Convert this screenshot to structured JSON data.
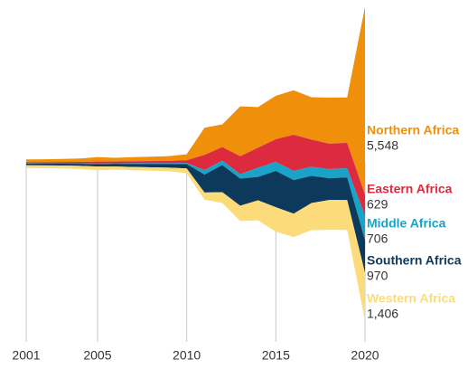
{
  "chart_data": {
    "type": "streamgraph",
    "x": [
      2001,
      2002,
      2003,
      2004,
      2005,
      2006,
      2007,
      2008,
      2009,
      2010,
      2011,
      2012,
      2013,
      2014,
      2015,
      2016,
      2017,
      2018,
      2019,
      2020
    ],
    "xlim": [
      2001,
      2020
    ],
    "xticks": [
      2001,
      2005,
      2010,
      2015,
      2020
    ],
    "grid": true,
    "series": [
      {
        "name": "Northern Africa",
        "color": "#f0900a",
        "values": [
          80,
          85,
          90,
          100,
          130,
          110,
          120,
          130,
          140,
          180,
          800,
          670,
          1470,
          1200,
          1280,
          1310,
          1250,
          1360,
          1340,
          5548
        ],
        "value_labels": {
          "19": "5,548"
        }
      },
      {
        "name": "Eastern Africa",
        "color": "#dc2a3e",
        "values": [
          30,
          30,
          35,
          40,
          60,
          50,
          55,
          60,
          65,
          80,
          450,
          400,
          530,
          590,
          670,
          1070,
          800,
          750,
          750,
          629
        ],
        "value_labels": {
          "19": "629"
        }
      },
      {
        "name": "Middle Africa",
        "color": "#1aa3c8",
        "values": [
          15,
          15,
          15,
          20,
          20,
          20,
          25,
          25,
          25,
          30,
          130,
          130,
          130,
          270,
          270,
          270,
          270,
          270,
          270,
          706
        ],
        "value_labels": {
          "19": "706"
        }
      },
      {
        "name": "Southern Africa",
        "color": "#0d3a5c",
        "values": [
          50,
          50,
          55,
          60,
          70,
          80,
          90,
          100,
          110,
          130,
          530,
          800,
          800,
          690,
          1070,
          990,
          800,
          640,
          670,
          970
        ],
        "value_labels": {
          "19": "970"
        }
      },
      {
        "name": "Western Africa",
        "color": "#fcdc7a",
        "values": [
          80,
          80,
          85,
          90,
          110,
          90,
          95,
          100,
          105,
          140,
          210,
          320,
          450,
          590,
          720,
          690,
          800,
          880,
          880,
          1406
        ],
        "value_labels": {
          "19": "1,406"
        }
      }
    ]
  }
}
